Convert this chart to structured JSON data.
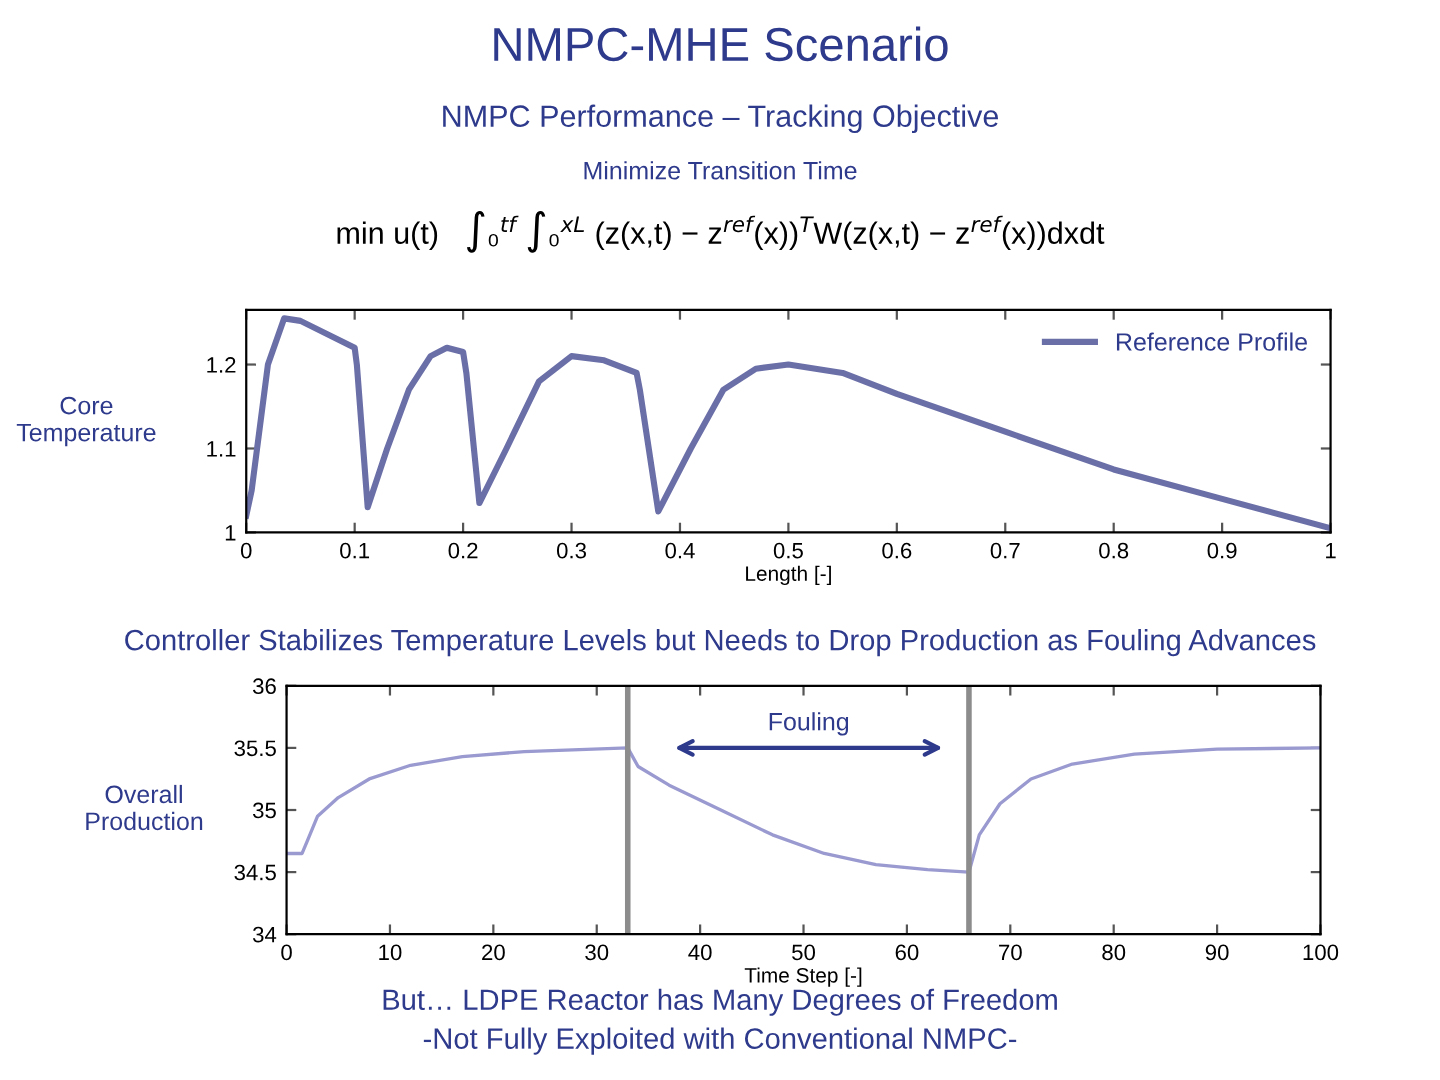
{
  "chart_data": [
    {
      "type": "line",
      "title": "NMPC-MHE Scenario",
      "subtitle": "NMPC Performance – Tracking Objective",
      "annotations": [
        "Minimize Transition Time",
        "min u(t)   ∫₀$^{tf}$ ∫₀$^{xL}$ (z(x,t) − z$^{ref}$(x))$^{T}$W(z(x,t) − z$^{ref}$(x))dxdt"
      ],
      "xlabel": "Length [-]",
      "ylabel": "Core\nTemperature",
      "xlim": [
        0,
        1
      ],
      "ylim": [
        1,
        1.265
      ],
      "xticks": [
        0,
        0.1,
        0.2,
        0.3,
        0.4,
        0.5,
        0.6,
        0.7,
        0.8,
        0.9,
        1
      ],
      "yticks": [
        1,
        1.1,
        1.2
      ],
      "grid": false,
      "legend": "top right",
      "series": [
        {
          "name": "Reference Profile",
          "color": "#6b6fa8",
          "x": [
            0,
            0.005,
            0.02,
            0.035,
            0.05,
            0.1,
            0.102,
            0.112,
            0.13,
            0.15,
            0.17,
            0.185,
            0.2,
            0.203,
            0.215,
            0.24,
            0.27,
            0.3,
            0.33,
            0.36,
            0.363,
            0.38,
            0.41,
            0.44,
            0.47,
            0.5,
            0.55,
            0.6,
            0.7,
            0.8,
            0.9,
            1.0
          ],
          "values": [
            1.02,
            1.05,
            1.2,
            1.255,
            1.252,
            1.22,
            1.2,
            1.03,
            1.1,
            1.17,
            1.21,
            1.22,
            1.215,
            1.19,
            1.035,
            1.1,
            1.18,
            1.21,
            1.205,
            1.19,
            1.17,
            1.025,
            1.1,
            1.17,
            1.195,
            1.2,
            1.19,
            1.165,
            1.12,
            1.075,
            1.04,
            1.005
          ]
        }
      ]
    },
    {
      "type": "line",
      "title": "Controller Stabilizes Temperature Levels but Needs to Drop Production as Fouling Advances",
      "annotations": [
        "Fouling",
        "But… LDPE Reactor has Many Degrees of Freedom",
        "-Not Fully Exploited with Conventional NMPC-"
      ],
      "xlabel": "Time Step [-]",
      "ylabel": "Overall\nProduction",
      "xlim": [
        0,
        100
      ],
      "ylim": [
        34,
        36
      ],
      "xticks": [
        0,
        10,
        20,
        30,
        40,
        50,
        60,
        70,
        80,
        90,
        100
      ],
      "yticks": [
        34,
        34.5,
        35,
        35.5,
        36
      ],
      "grid": false,
      "ref_lines": [
        {
          "axis": "x",
          "value": 33,
          "color": "#8c8c8c"
        },
        {
          "axis": "x",
          "value": 66,
          "color": "#8c8c8c"
        }
      ],
      "series": [
        {
          "color": "#9a9ad0",
          "x": [
            0,
            1.5,
            2,
            3,
            5,
            8,
            12,
            17,
            23,
            33,
            34,
            37,
            42,
            47,
            52,
            57,
            62,
            66,
            67,
            69,
            72,
            76,
            82,
            90,
            100
          ],
          "values": [
            34.65,
            34.65,
            34.75,
            34.95,
            35.1,
            35.25,
            35.36,
            35.43,
            35.47,
            35.5,
            35.35,
            35.2,
            35.0,
            34.8,
            34.65,
            34.56,
            34.52,
            34.5,
            34.8,
            35.05,
            35.25,
            35.37,
            35.45,
            35.49,
            35.5
          ]
        }
      ]
    }
  ]
}
